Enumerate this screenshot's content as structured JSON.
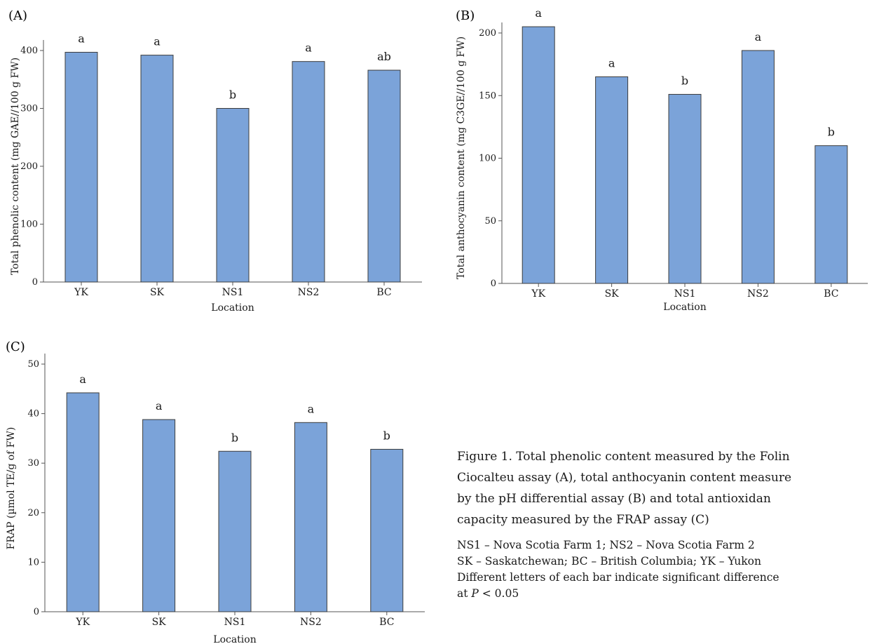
{
  "chart_data": [
    {
      "id": "A",
      "type": "bar",
      "panel_label": "(A)",
      "title": "",
      "xlabel": "Location",
      "ylabel": "Total phenolic content (mg GAE//100 g FW)",
      "categories": [
        "YK",
        "SK",
        "NS1",
        "NS2",
        "BC"
      ],
      "values": [
        397,
        392,
        300,
        381,
        366
      ],
      "significance_letters": [
        "a",
        "a",
        "b",
        "a",
        "ab"
      ],
      "ylim": [
        0,
        400
      ],
      "yticks": [
        0,
        100,
        200,
        300,
        400
      ],
      "grid": false,
      "bar_color": "#7ba3d9"
    },
    {
      "id": "B",
      "type": "bar",
      "panel_label": "(B)",
      "title": "",
      "xlabel": "Location",
      "ylabel": "Total anthocyanin content (mg C3GE//100 g FW)",
      "categories": [
        "YK",
        "SK",
        "NS1",
        "NS2",
        "BC"
      ],
      "values": [
        205,
        165,
        151,
        186,
        110
      ],
      "significance_letters": [
        "a",
        "a",
        "b",
        "a",
        "b"
      ],
      "ylim": [
        0,
        200
      ],
      "yticks": [
        0,
        50,
        100,
        150,
        200
      ],
      "grid": false,
      "bar_color": "#7ba3d9"
    },
    {
      "id": "C",
      "type": "bar",
      "panel_label": "(C)",
      "title": "",
      "xlabel": "Location",
      "ylabel": "FRAP (µmol TE/g of FW)",
      "categories": [
        "YK",
        "SK",
        "NS1",
        "NS2",
        "BC"
      ],
      "values": [
        44.2,
        38.8,
        32.4,
        38.2,
        32.8
      ],
      "significance_letters": [
        "a",
        "a",
        "b",
        "a",
        "b"
      ],
      "ylim": [
        0,
        50
      ],
      "yticks": [
        0,
        10,
        20,
        30,
        40,
        50
      ],
      "grid": false,
      "bar_color": "#7ba3d9"
    }
  ],
  "caption": {
    "lines": [
      "Figure 1. Total phenolic content measured by the Folin",
      "Ciocalteu assay (A), total anthocyanin content measure",
      "by the pH differential assay (B) and total antioxidan",
      "capacity measured by the FRAP assay (C)"
    ],
    "note_lines": [
      "NS1 – Nova Scotia Farm 1; NS2 – Nova Scotia Farm 2",
      "SK – Saskatchewan; BC – British Columbia; YK – Yukon",
      "Different letters of each bar indicate significant difference"
    ],
    "pvalue_prefix": "at ",
    "pvalue_symbol": "P",
    "pvalue_suffix": " < 0.05"
  }
}
